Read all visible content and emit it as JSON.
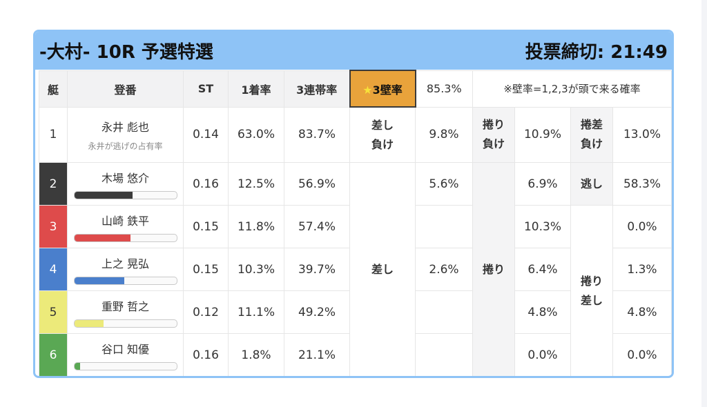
{
  "header": {
    "title": "-大村- 10R 予選特選",
    "deadline": "投票締切: 21:49"
  },
  "columns": {
    "boat": "艇",
    "racer": "登番",
    "st": "ST",
    "win_rate": "1着率",
    "top3_rate": "3連帯率",
    "wall_star": "★",
    "wall_label": "3壁率",
    "wall_value": "85.3%",
    "wall_note": "※壁率=1,2,3が頭で来る確率"
  },
  "rows": [
    {
      "boat": "1",
      "name": "永井 彪也",
      "sub": "永井が逃げの占有率",
      "st": "0.14",
      "win": "63.0%",
      "top3": "83.7%"
    },
    {
      "boat": "2",
      "name": "木場 悠介",
      "st": "0.16",
      "win": "12.5%",
      "top3": "56.9%",
      "bar": 0.57,
      "color": "#3b3b3b"
    },
    {
      "boat": "3",
      "name": "山崎 鉄平",
      "st": "0.15",
      "win": "11.8%",
      "top3": "57.4%",
      "bar": 0.55,
      "color": "#de4b4b"
    },
    {
      "boat": "4",
      "name": "上之 晃弘",
      "st": "0.15",
      "win": "10.3%",
      "top3": "39.7%",
      "bar": 0.49,
      "color": "#4a7fcc"
    },
    {
      "boat": "5",
      "name": "重野 哲之",
      "st": "0.12",
      "win": "11.1%",
      "top3": "49.2%",
      "bar": 0.29,
      "color": "#ecea7a"
    },
    {
      "boat": "6",
      "name": "谷口 知優",
      "st": "0.16",
      "win": "1.8%",
      "top3": "21.1%",
      "bar": 0.06,
      "color": "#5aa854"
    }
  ],
  "kimarite": {
    "sashi_make_1": "差し",
    "sashi_make_2": "負け",
    "sashi_make_val": "9.8%",
    "makuri_make_1": "捲り",
    "makuri_make_2": "負け",
    "makuri_make_val": "10.9%",
    "makurisashi_make_1": "捲差",
    "makurisashi_make_2": "負け",
    "makurisashi_make_val": "13.0%",
    "sashi": "差し",
    "sashi_b2": "5.6%",
    "sashi_b4": "2.6%",
    "makuri": "捲り",
    "makuri_b2": "6.9%",
    "makuri_b3": "10.3%",
    "makuri_b4": "6.4%",
    "makuri_b5": "4.8%",
    "makuri_b6": "0.0%",
    "nigashi": "逃し",
    "nigashi_b2": "58.3%",
    "makurisashi_1": "捲り",
    "makurisashi_2": "差し",
    "makurisashi_b3": "0.0%",
    "makurisashi_b4": "1.3%",
    "makurisashi_b5": "4.8%",
    "makurisashi_b6": "0.0%"
  }
}
